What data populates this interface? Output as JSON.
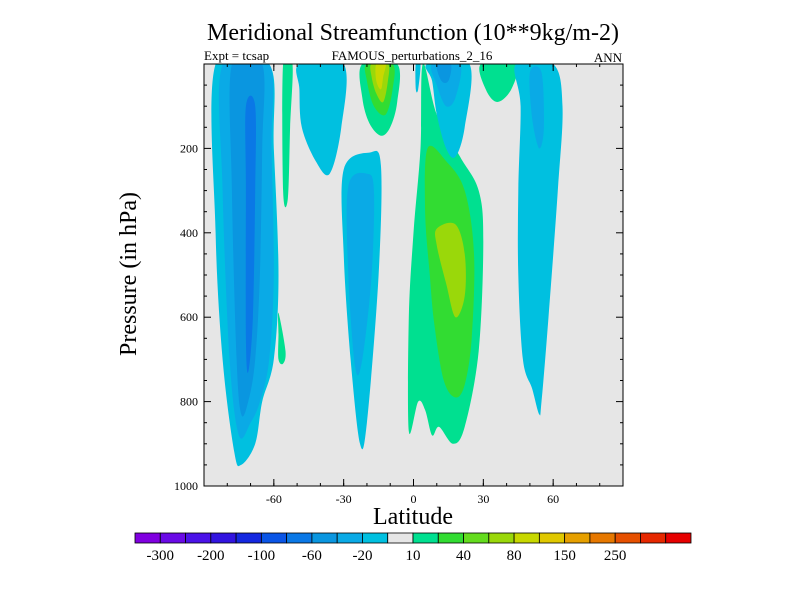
{
  "chart_data": {
    "type": "contour",
    "title": "Meridional Streamfunction (10**9kg/m-2)",
    "subtitle_left": "Expt = tcsap",
    "subtitle_center": "FAMOUS_perturbations_2_16",
    "subtitle_right": "ANN",
    "xlabel": "Latitude",
    "ylabel": "Pressure (in hPa)",
    "xlim": [
      -90,
      90
    ],
    "ylim": [
      1000,
      0
    ],
    "xticks": [
      -60,
      -30,
      0,
      30,
      60
    ],
    "xtick_labels": [
      "-60",
      "-30",
      "0",
      "30",
      "60"
    ],
    "yticks": [
      200,
      400,
      600,
      800,
      1000
    ],
    "ytick_labels": [
      "200",
      "400",
      "600",
      "800",
      "1000"
    ],
    "background_color": "#e6e6e6",
    "colorbar": {
      "colors": [
        "#8000e0",
        "#6a0ae6",
        "#4b12e8",
        "#3214e0",
        "#1428e0",
        "#0a55e6",
        "#0a78e6",
        "#0a96e0",
        "#0aaae6",
        "#00c0e0",
        "#e6e6e6",
        "#00e090",
        "#32dc32",
        "#64dc1e",
        "#9ad80a",
        "#c8d800",
        "#e0c800",
        "#e6a000",
        "#e67800",
        "#e65000",
        "#e62800",
        "#e60000"
      ],
      "label_values": [
        "-300",
        "-200",
        "-100",
        "-60",
        "-20",
        "10",
        "40",
        "80",
        "150",
        "250"
      ]
    },
    "contour_regions": [
      {
        "level": -20,
        "color": "#00c0e0",
        "lat": [
          -85,
          -62,
          -60,
          -58,
          -60,
          -65,
          -68,
          -74,
          -77,
          -82,
          -85
        ],
        "p": [
          0,
          0,
          200,
          500,
          700,
          800,
          900,
          950,
          920,
          700,
          400
        ]
      },
      {
        "level": -40,
        "color": "#0aaae6",
        "lat": [
          -82,
          -62,
          -61,
          -60,
          -62,
          -66,
          -70,
          -75,
          -79,
          -82
        ],
        "p": [
          0,
          0,
          200,
          500,
          700,
          800,
          850,
          880,
          700,
          300
        ]
      },
      {
        "level": -60,
        "color": "#0a96e0",
        "lat": [
          -78,
          -65,
          -65,
          -66,
          -68,
          -71,
          -74,
          -76,
          -78
        ],
        "p": [
          0,
          0,
          200,
          500,
          700,
          800,
          830,
          700,
          300
        ]
      },
      {
        "level": -80,
        "color": "#0a78e6",
        "lat": [
          -72,
          -68,
          -68,
          -69,
          -71,
          -72,
          -72
        ],
        "p": [
          100,
          100,
          300,
          600,
          730,
          650,
          300
        ]
      },
      {
        "level": 10,
        "color": "#00e090",
        "lat": [
          -56,
          -52,
          -53,
          -54,
          -56
        ],
        "p": [
          0,
          0,
          150,
          320,
          300
        ]
      },
      {
        "level": -20,
        "color": "#00c0e0",
        "lat": [
          -49,
          -30,
          -31,
          -36,
          -42,
          -48,
          -49
        ],
        "p": [
          0,
          0,
          150,
          260,
          230,
          150,
          60
        ]
      },
      {
        "level": 10,
        "color": "#00e090",
        "lat": [
          -22,
          -7,
          -7,
          -10,
          -14,
          -19,
          -22
        ],
        "p": [
          0,
          0,
          90,
          150,
          170,
          140,
          80
        ]
      },
      {
        "level": 40,
        "color": "#32dc32",
        "lat": [
          -20,
          -9,
          -9,
          -12,
          -17,
          -20
        ],
        "p": [
          0,
          0,
          60,
          120,
          100,
          40
        ]
      },
      {
        "level": 80,
        "color": "#9ad80a",
        "lat": [
          -18,
          -11,
          -11,
          -13,
          -16,
          -18
        ],
        "p": [
          0,
          0,
          40,
          90,
          70,
          30
        ]
      },
      {
        "level": 120,
        "color": "#c8d800",
        "lat": [
          -16,
          -12,
          -13,
          -14,
          -16
        ],
        "p": [
          0,
          0,
          30,
          60,
          40
        ]
      },
      {
        "level": -20,
        "color": "#00c0e0",
        "lat": [
          -30,
          -19,
          -14,
          -15,
          -20,
          -23,
          -27,
          -30
        ],
        "p": [
          250,
          210,
          240,
          500,
          850,
          900,
          700,
          450
        ]
      },
      {
        "level": -40,
        "color": "#0aaae6",
        "lat": [
          -28,
          -20,
          -17,
          -18,
          -22,
          -25,
          -28
        ],
        "p": [
          290,
          260,
          300,
          500,
          700,
          720,
          500
        ]
      },
      {
        "level": 10,
        "color": "#00e090",
        "lat": [
          -58,
          -55,
          -56,
          -58,
          -58
        ],
        "p": [
          590,
          680,
          710,
          700,
          640
        ]
      },
      {
        "level": 10,
        "color": "#00e090",
        "lat": [
          4,
          10,
          20,
          28,
          30,
          28,
          22,
          17,
          11,
          8,
          5,
          2,
          -2,
          -2,
          0,
          3
        ],
        "p": [
          0,
          120,
          220,
          300,
          420,
          680,
          860,
          900,
          860,
          880,
          820,
          800,
          870,
          600,
          400,
          200
        ]
      },
      {
        "level": 40,
        "color": "#32dc32",
        "lat": [
          6,
          14,
          22,
          26,
          25,
          22,
          18,
          13,
          9,
          7,
          5
        ],
        "p": [
          200,
          230,
          300,
          450,
          650,
          760,
          790,
          750,
          620,
          500,
          350
        ]
      },
      {
        "level": 80,
        "color": "#9ad80a",
        "lat": [
          10,
          18,
          22,
          22,
          18,
          14,
          10
        ],
        "p": [
          390,
          380,
          450,
          550,
          600,
          520,
          430
        ]
      },
      {
        "level": 10,
        "color": "#00e090",
        "lat": [
          -1,
          2,
          2,
          0,
          -1
        ],
        "p": [
          500,
          480,
          600,
          650,
          560
        ]
      },
      {
        "level": -20,
        "color": "#00c0e0",
        "lat": [
          6,
          24,
          22,
          18,
          14,
          10,
          8
        ],
        "p": [
          0,
          0,
          150,
          220,
          200,
          120,
          40
        ]
      },
      {
        "level": -40,
        "color": "#0aaae6",
        "lat": [
          8,
          20,
          18,
          14,
          10
        ],
        "p": [
          0,
          0,
          80,
          100,
          50
        ]
      },
      {
        "level": -60,
        "color": "#0a96e0",
        "lat": [
          10,
          16,
          15,
          12
        ],
        "p": [
          0,
          0,
          40,
          40
        ]
      },
      {
        "level": -20,
        "color": "#00c0e0",
        "lat": [
          1,
          3,
          2,
          1
        ],
        "p": [
          0,
          0,
          60,
          60
        ]
      },
      {
        "level": 10,
        "color": "#00e090",
        "lat": [
          29,
          44,
          42,
          36,
          31
        ],
        "p": [
          0,
          0,
          60,
          90,
          60
        ]
      },
      {
        "level": -20,
        "color": "#00c0e0",
        "lat": [
          44,
          60,
          64,
          62,
          58,
          55,
          54,
          51,
          47,
          45,
          45,
          46
        ],
        "p": [
          0,
          0,
          100,
          300,
          600,
          800,
          830,
          770,
          700,
          500,
          300,
          100
        ]
      },
      {
        "level": -40,
        "color": "#0aaae6",
        "lat": [
          50,
          55,
          56,
          54,
          51
        ],
        "p": [
          20,
          20,
          150,
          200,
          130
        ]
      }
    ]
  }
}
